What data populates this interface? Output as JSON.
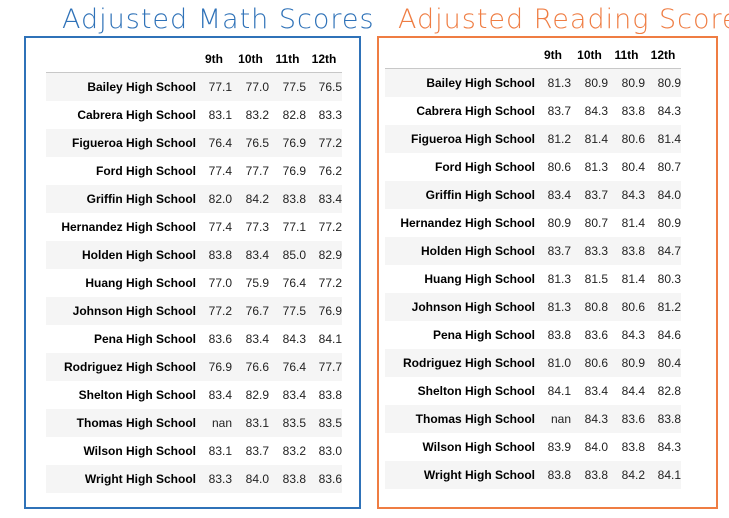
{
  "colors": {
    "math": "#2f72b8",
    "reading": "#ef7d43"
  },
  "math": {
    "title": "Adjusted Math Scores",
    "columns": [
      "9th",
      "10th",
      "11th",
      "12th"
    ],
    "rows": [
      {
        "school": "Bailey High School",
        "values": [
          "77.1",
          "77.0",
          "77.5",
          "76.5"
        ]
      },
      {
        "school": "Cabrera High School",
        "values": [
          "83.1",
          "83.2",
          "82.8",
          "83.3"
        ]
      },
      {
        "school": "Figueroa High School",
        "values": [
          "76.4",
          "76.5",
          "76.9",
          "77.2"
        ]
      },
      {
        "school": "Ford High School",
        "values": [
          "77.4",
          "77.7",
          "76.9",
          "76.2"
        ]
      },
      {
        "school": "Griffin High School",
        "values": [
          "82.0",
          "84.2",
          "83.8",
          "83.4"
        ]
      },
      {
        "school": "Hernandez High School",
        "values": [
          "77.4",
          "77.3",
          "77.1",
          "77.2"
        ]
      },
      {
        "school": "Holden High School",
        "values": [
          "83.8",
          "83.4",
          "85.0",
          "82.9"
        ]
      },
      {
        "school": "Huang High School",
        "values": [
          "77.0",
          "75.9",
          "76.4",
          "77.2"
        ]
      },
      {
        "school": "Johnson High School",
        "values": [
          "77.2",
          "76.7",
          "77.5",
          "76.9"
        ]
      },
      {
        "school": "Pena High School",
        "values": [
          "83.6",
          "83.4",
          "84.3",
          "84.1"
        ]
      },
      {
        "school": "Rodriguez High School",
        "values": [
          "76.9",
          "76.6",
          "76.4",
          "77.7"
        ]
      },
      {
        "school": "Shelton High School",
        "values": [
          "83.4",
          "82.9",
          "83.4",
          "83.8"
        ]
      },
      {
        "school": "Thomas High School",
        "values": [
          "nan",
          "83.1",
          "83.5",
          "83.5"
        ]
      },
      {
        "school": "Wilson High School",
        "values": [
          "83.1",
          "83.7",
          "83.2",
          "83.0"
        ]
      },
      {
        "school": "Wright High School",
        "values": [
          "83.3",
          "84.0",
          "83.8",
          "83.6"
        ]
      }
    ]
  },
  "reading": {
    "title": "Adjusted Reading Scores",
    "columns": [
      "9th",
      "10th",
      "11th",
      "12th"
    ],
    "rows": [
      {
        "school": "Bailey High School",
        "values": [
          "81.3",
          "80.9",
          "80.9",
          "80.9"
        ]
      },
      {
        "school": "Cabrera High School",
        "values": [
          "83.7",
          "84.3",
          "83.8",
          "84.3"
        ]
      },
      {
        "school": "Figueroa High School",
        "values": [
          "81.2",
          "81.4",
          "80.6",
          "81.4"
        ]
      },
      {
        "school": "Ford High School",
        "values": [
          "80.6",
          "81.3",
          "80.4",
          "80.7"
        ]
      },
      {
        "school": "Griffin High School",
        "values": [
          "83.4",
          "83.7",
          "84.3",
          "84.0"
        ]
      },
      {
        "school": "Hernandez High School",
        "values": [
          "80.9",
          "80.7",
          "81.4",
          "80.9"
        ]
      },
      {
        "school": "Holden High School",
        "values": [
          "83.7",
          "83.3",
          "83.8",
          "84.7"
        ]
      },
      {
        "school": "Huang High School",
        "values": [
          "81.3",
          "81.5",
          "81.4",
          "80.3"
        ]
      },
      {
        "school": "Johnson High School",
        "values": [
          "81.3",
          "80.8",
          "80.6",
          "81.2"
        ]
      },
      {
        "school": "Pena High School",
        "values": [
          "83.8",
          "83.6",
          "84.3",
          "84.6"
        ]
      },
      {
        "school": "Rodriguez High School",
        "values": [
          "81.0",
          "80.6",
          "80.9",
          "80.4"
        ]
      },
      {
        "school": "Shelton High School",
        "values": [
          "84.1",
          "83.4",
          "84.4",
          "82.8"
        ]
      },
      {
        "school": "Thomas High School",
        "values": [
          "nan",
          "84.3",
          "83.6",
          "83.8"
        ]
      },
      {
        "school": "Wilson High School",
        "values": [
          "83.9",
          "84.0",
          "83.8",
          "84.3"
        ]
      },
      {
        "school": "Wright High School",
        "values": [
          "83.8",
          "83.8",
          "84.2",
          "84.1"
        ]
      }
    ]
  }
}
